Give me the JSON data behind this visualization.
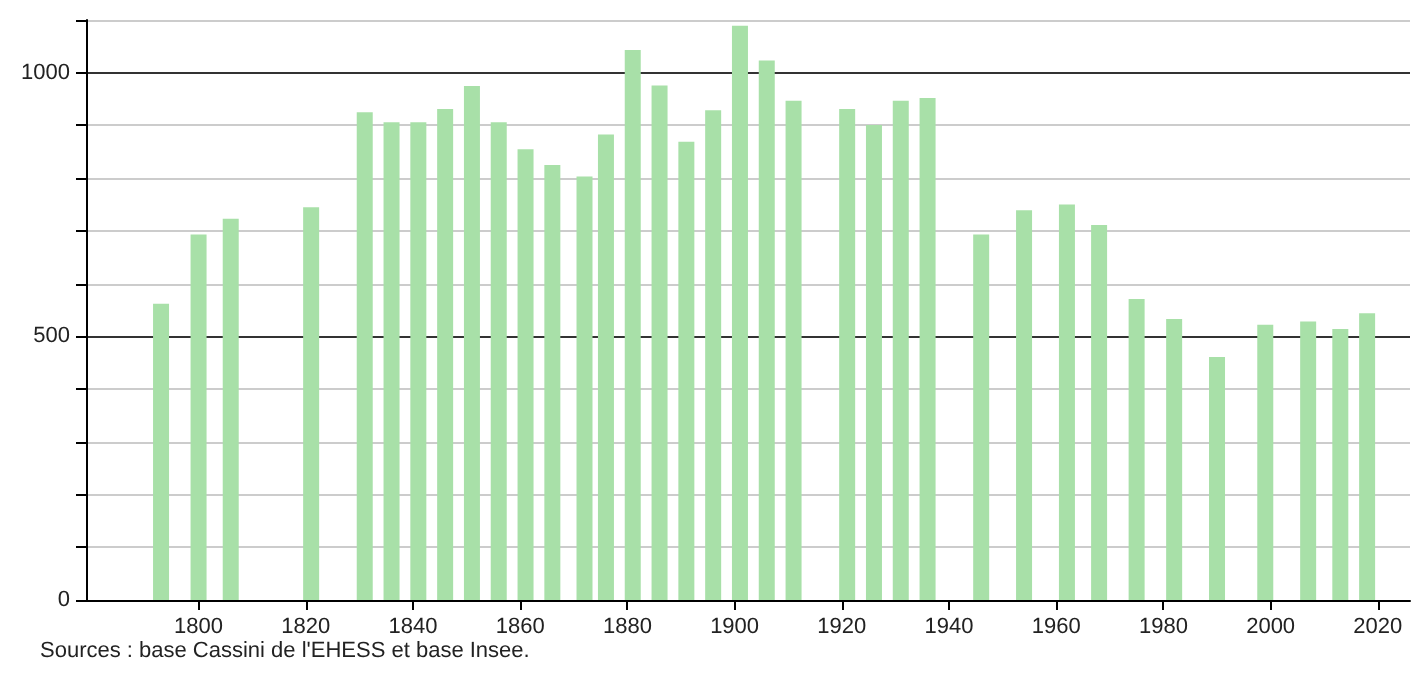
{
  "chart_data": {
    "type": "bar",
    "x": [
      1793,
      1800,
      1806,
      1821,
      1831,
      1836,
      1841,
      1846,
      1851,
      1856,
      1861,
      1866,
      1872,
      1876,
      1881,
      1886,
      1891,
      1896,
      1901,
      1906,
      1911,
      1921,
      1926,
      1931,
      1936,
      1946,
      1954,
      1962,
      1968,
      1975,
      1982,
      1990,
      1999,
      2007,
      2013,
      2018
    ],
    "values": [
      562,
      693,
      723,
      745,
      925,
      906,
      906,
      931,
      975,
      906,
      855,
      825,
      803,
      883,
      1043,
      976,
      869,
      929,
      1089,
      1023,
      947,
      931,
      901,
      947,
      952,
      693,
      739,
      750,
      711,
      571,
      533,
      461,
      522,
      528,
      514,
      544
    ],
    "color": "#a8e0a8",
    "xlim": [
      1779,
      2026
    ],
    "xticks": [
      1800,
      1820,
      1840,
      1860,
      1880,
      1900,
      1920,
      1940,
      1960,
      1980,
      2000,
      2020
    ],
    "ylim": [
      0,
      1100
    ],
    "yticks": [
      0,
      {
        "value": 100,
        "label": null
      },
      {
        "value": 200,
        "label": null
      },
      {
        "value": 300,
        "label": null
      },
      {
        "value": 400,
        "label": null
      },
      500,
      {
        "value": 600,
        "label": null
      },
      {
        "value": 700,
        "label": null
      },
      {
        "value": 800,
        "label": null
      },
      {
        "value": 900,
        "label": null
      },
      1000,
      {
        "value": 1100,
        "label": null
      }
    ],
    "grid": "y",
    "annotations": [
      "Sources : base Cassini de l'EHESS et base Insee."
    ]
  }
}
